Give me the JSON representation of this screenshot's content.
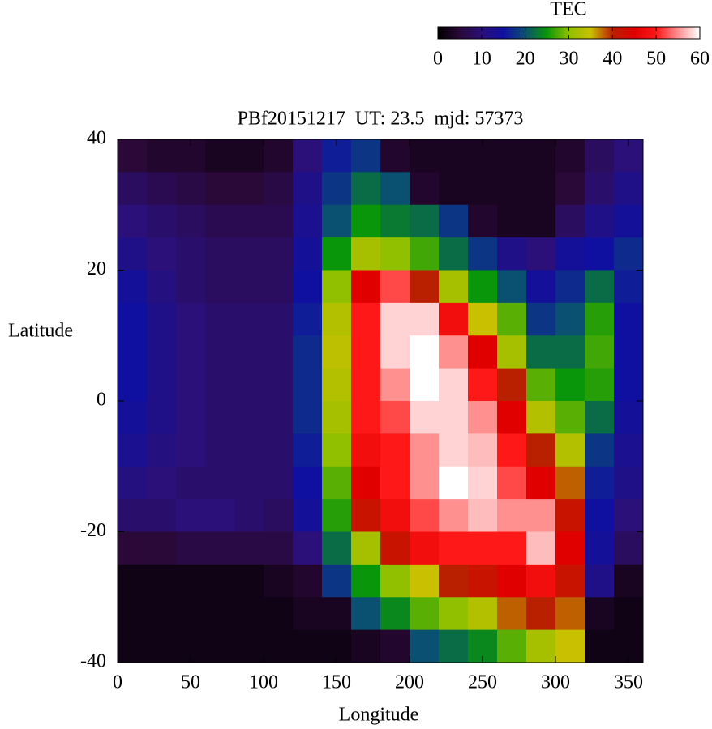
{
  "chart_data": {
    "type": "heatmap",
    "title": "PBf20151217  UT: 23.5  mjd: 57373",
    "x_label": "Longitude",
    "y_label": "Latitude",
    "xlim": [
      0,
      360
    ],
    "ylim": [
      -40,
      40
    ],
    "xticks": [
      0,
      50,
      100,
      150,
      200,
      250,
      300,
      350
    ],
    "yticks": [
      -40,
      -20,
      0,
      20,
      40
    ],
    "x": [
      10,
      30,
      50,
      70,
      90,
      110,
      130,
      150,
      170,
      190,
      210,
      230,
      250,
      270,
      290,
      310,
      330,
      350
    ],
    "y": [
      37.5,
      32.5,
      27.5,
      22.5,
      17.5,
      12.5,
      7.5,
      2.5,
      -2.5,
      -7.5,
      -12.5,
      -17.5,
      -22.5,
      -27.5,
      -32.5,
      -37.5
    ],
    "z": [
      [
        5,
        4,
        4,
        3,
        3,
        4,
        10,
        16,
        18,
        4,
        3,
        3,
        3,
        3,
        3,
        4,
        8,
        10
      ],
      [
        8,
        7,
        6,
        5,
        5,
        6,
        12,
        18,
        22,
        20,
        4,
        3,
        3,
        3,
        3,
        5,
        9,
        12
      ],
      [
        10,
        9,
        8,
        7,
        7,
        7,
        13,
        20,
        25,
        23,
        22,
        18,
        4,
        3,
        3,
        8,
        12,
        14
      ],
      [
        12,
        10,
        9,
        8,
        8,
        8,
        14,
        25,
        32,
        30,
        27,
        22,
        18,
        12,
        10,
        14,
        15,
        17
      ],
      [
        14,
        11,
        9,
        8,
        8,
        8,
        15,
        30,
        45,
        52,
        40,
        32,
        25,
        20,
        14,
        17,
        22,
        16
      ],
      [
        15,
        12,
        10,
        9,
        9,
        9,
        16,
        33,
        50,
        58,
        58,
        48,
        35,
        28,
        18,
        20,
        26,
        15
      ],
      [
        15,
        12,
        10,
        9,
        9,
        9,
        17,
        34,
        50,
        58,
        60,
        55,
        45,
        32,
        22,
        22,
        27,
        15
      ],
      [
        15,
        12,
        10,
        9,
        9,
        9,
        17,
        33,
        50,
        55,
        60,
        58,
        50,
        40,
        28,
        25,
        26,
        15
      ],
      [
        14,
        12,
        10,
        9,
        9,
        9,
        17,
        32,
        50,
        52,
        58,
        58,
        55,
        45,
        33,
        28,
        22,
        14
      ],
      [
        13,
        11,
        10,
        9,
        9,
        9,
        16,
        30,
        48,
        50,
        55,
        58,
        57,
        50,
        40,
        33,
        18,
        13
      ],
      [
        11,
        10,
        9,
        9,
        9,
        9,
        15,
        28,
        45,
        50,
        55,
        60,
        58,
        52,
        45,
        38,
        16,
        12
      ],
      [
        9,
        9,
        10,
        10,
        9,
        8,
        14,
        26,
        42,
        48,
        52,
        55,
        57,
        55,
        55,
        42,
        15,
        10
      ],
      [
        5,
        5,
        6,
        6,
        6,
        6,
        10,
        22,
        32,
        42,
        48,
        50,
        50,
        50,
        57,
        45,
        14,
        8
      ],
      [
        2,
        2,
        2,
        2,
        2,
        3,
        4,
        18,
        25,
        30,
        35,
        40,
        42,
        45,
        48,
        42,
        12,
        3
      ],
      [
        2,
        2,
        2,
        2,
        2,
        2,
        3,
        3,
        20,
        24,
        28,
        30,
        33,
        38,
        40,
        38,
        3,
        2
      ],
      [
        2,
        2,
        2,
        2,
        2,
        2,
        2,
        2,
        3,
        4,
        20,
        22,
        24,
        28,
        32,
        35,
        2,
        2
      ]
    ],
    "colorbar": {
      "label": "TEC",
      "lim": [
        0,
        60
      ],
      "ticks": [
        0,
        10,
        20,
        30,
        40,
        50,
        60
      ],
      "colorscale": [
        [
          0,
          "#000000"
        ],
        [
          5,
          "#2a0838"
        ],
        [
          10,
          "#2a1078"
        ],
        [
          15,
          "#1010a0"
        ],
        [
          20,
          "#0a5070"
        ],
        [
          25,
          "#0a960a"
        ],
        [
          30,
          "#90c000"
        ],
        [
          35,
          "#c8c000"
        ],
        [
          40,
          "#b82000"
        ],
        [
          45,
          "#e00000"
        ],
        [
          50,
          "#ff1818"
        ],
        [
          55,
          "#ff9090"
        ],
        [
          60,
          "#ffffff"
        ]
      ]
    }
  }
}
